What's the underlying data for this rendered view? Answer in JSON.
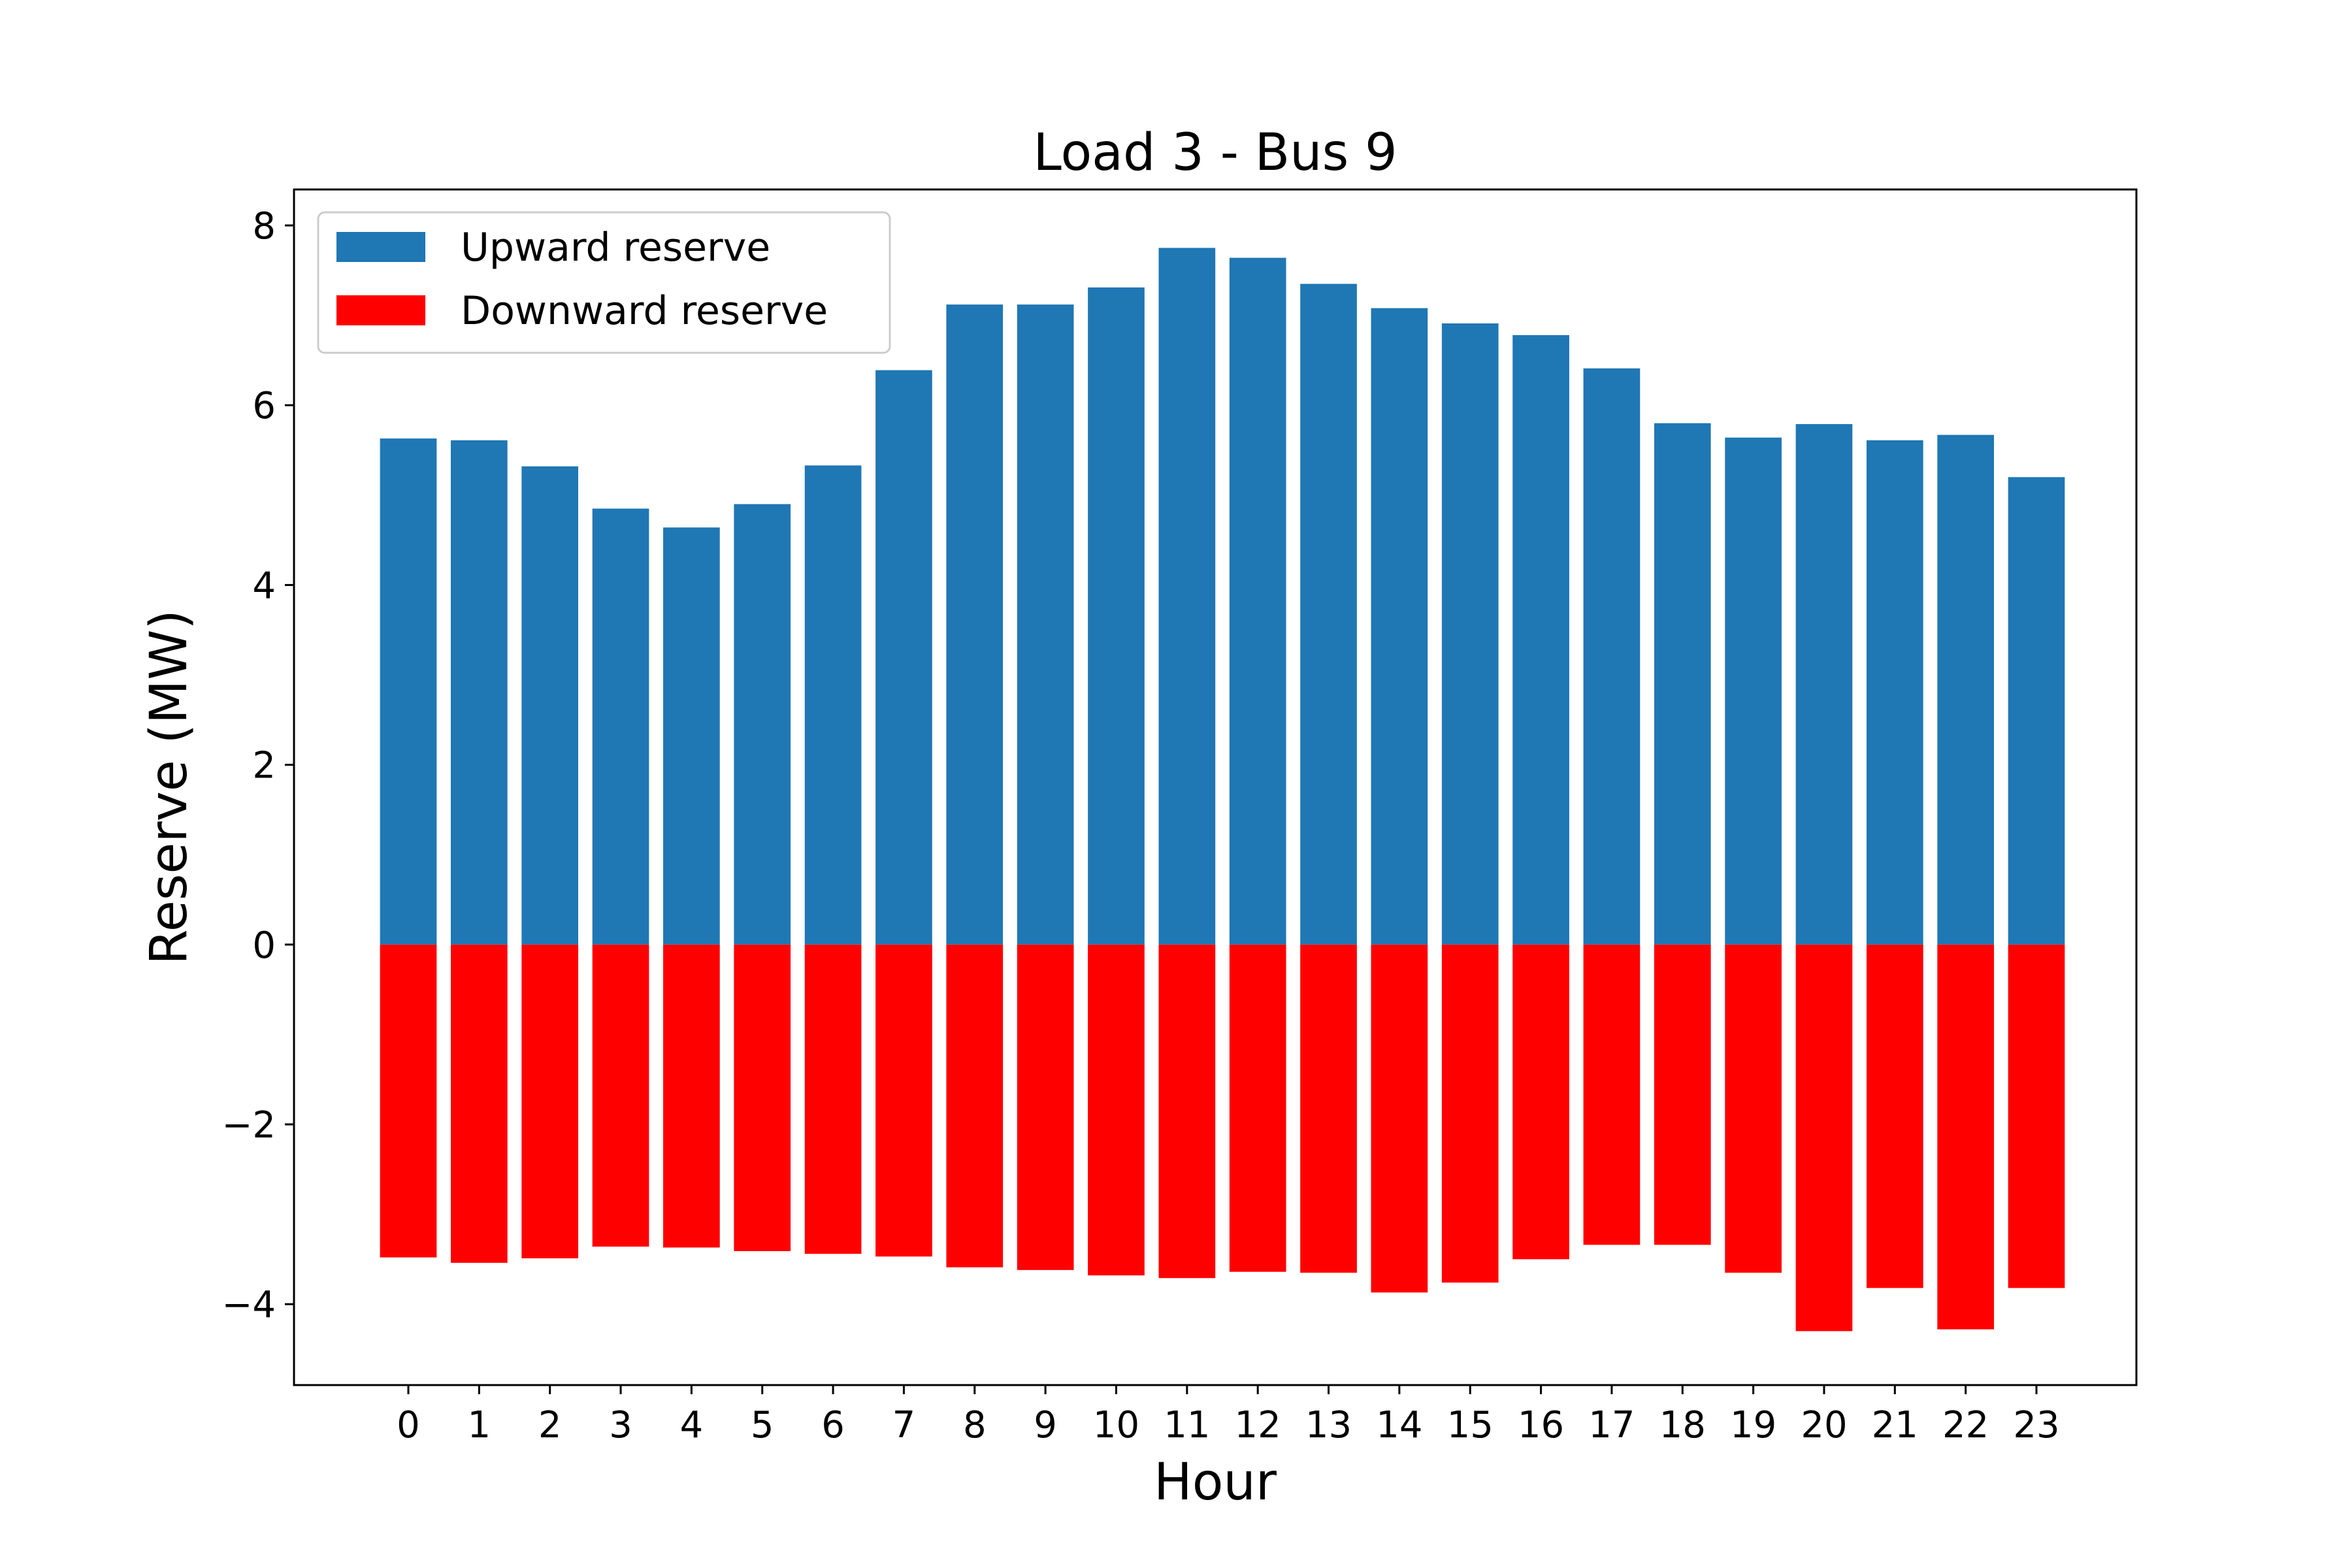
{
  "chart_data": {
    "type": "bar",
    "title": "Load 3 - Bus 9",
    "xlabel": "Hour",
    "ylabel": "Reserve (MW)",
    "categories": [
      "0",
      "1",
      "2",
      "3",
      "4",
      "5",
      "6",
      "7",
      "8",
      "9",
      "10",
      "11",
      "12",
      "13",
      "14",
      "15",
      "16",
      "17",
      "18",
      "19",
      "20",
      "21",
      "22",
      "23"
    ],
    "ylim": [
      -4.9,
      8.4
    ],
    "yticks": [
      -4,
      -2,
      0,
      2,
      4,
      6,
      8
    ],
    "ytick_labels": [
      "−4",
      "−2",
      "0",
      "2",
      "4",
      "6",
      "8"
    ],
    "grid": false,
    "legend_position": "top-left",
    "series": [
      {
        "name": "Upward reserve",
        "color": "#1f77b4",
        "values": [
          5.63,
          5.61,
          5.32,
          4.85,
          4.64,
          4.9,
          5.33,
          6.39,
          7.12,
          7.12,
          7.31,
          7.75,
          7.64,
          7.35,
          7.08,
          6.91,
          6.78,
          6.41,
          5.8,
          5.64,
          5.79,
          5.61,
          5.67,
          5.2
        ]
      },
      {
        "name": "Downward reserve",
        "color": "#ff0000",
        "values": [
          -3.48,
          -3.54,
          -3.49,
          -3.36,
          -3.37,
          -3.41,
          -3.44,
          -3.47,
          -3.59,
          -3.62,
          -3.68,
          -3.71,
          -3.64,
          -3.65,
          -3.87,
          -3.76,
          -3.5,
          -3.34,
          -3.34,
          -3.65,
          -4.3,
          -3.82,
          -4.28,
          -3.82
        ]
      }
    ]
  }
}
